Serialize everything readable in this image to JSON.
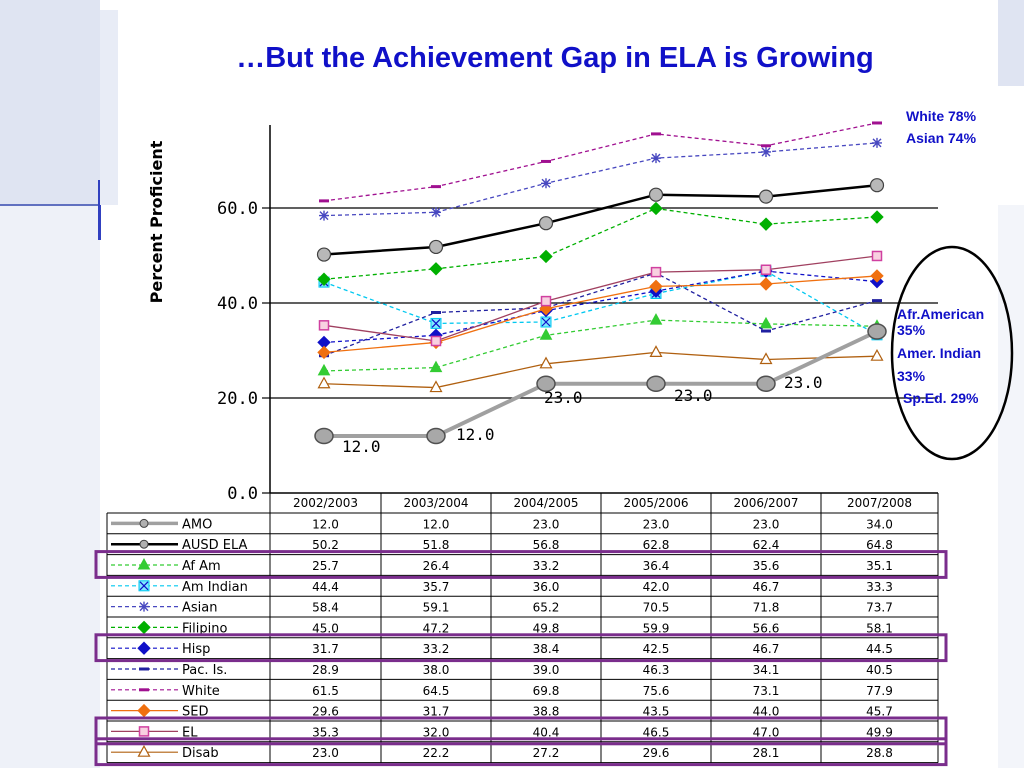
{
  "title": "…But the Achievement Gap in ELA is Growing",
  "callouts": {
    "white": "White 78%",
    "asian": "Asian 74%",
    "afr_american": "Afr.American",
    "afr_american_pct": "35%",
    "amer_indian": "Amer. Indian",
    "amer_indian_pct": "33%",
    "sped": "Sp.Ed. 29%"
  },
  "colors": {
    "title": "#1010c8",
    "highlight_box": "#7a2d8c",
    "oval": "#000000"
  },
  "chart_data": {
    "type": "line",
    "title": "",
    "xlabel": "",
    "ylabel": "Percent Proficient",
    "ylim": [
      0,
      80
    ],
    "yticks": [
      "0.0",
      "20.0",
      "40.0",
      "60.0"
    ],
    "gridlines": [
      20,
      40,
      60
    ],
    "categories": [
      "2002/2003",
      "2003/2004",
      "2004/2005",
      "2005/2006",
      "2006/2007",
      "2007/2008"
    ],
    "legend": "table-below",
    "highlighted_rows": [
      "Af Am",
      "Hisp",
      "EL",
      "Disab"
    ],
    "series": [
      {
        "name": "AMO",
        "color": "#a0a0a0",
        "dash": false,
        "marker": "circle",
        "labels": [
          "12.0",
          "12.0",
          "23.0",
          "23.0",
          "23.0",
          "34.0"
        ],
        "values": [
          12.0,
          12.0,
          23.0,
          23.0,
          23.0,
          34.0
        ]
      },
      {
        "name": "AUSD ELA",
        "color": "#000000",
        "dash": false,
        "marker": "circle",
        "labels": [
          "50.2",
          "51.8",
          "56.8",
          "62.8",
          "62.4",
          "64.8"
        ],
        "values": [
          50.2,
          51.8,
          56.8,
          62.8,
          62.4,
          64.8
        ]
      },
      {
        "name": "Af Am",
        "color": "#33cc33",
        "dash": true,
        "marker": "triangle",
        "labels": [
          "25.7",
          "26.4",
          "33.2",
          "36.4",
          "35.6",
          "35.1"
        ],
        "values": [
          25.7,
          26.4,
          33.2,
          36.4,
          35.6,
          35.1
        ]
      },
      {
        "name": "Am Indian",
        "color": "#00c8f0",
        "dash": true,
        "marker": "xsquare",
        "labels": [
          "44.4",
          "35.7",
          "36.0",
          "42.0",
          "46.7",
          "33.3"
        ],
        "values": [
          44.4,
          35.7,
          36.0,
          42.0,
          46.7,
          33.3
        ]
      },
      {
        "name": "Asian",
        "color": "#4848c0",
        "dash": true,
        "marker": "star",
        "labels": [
          "58.4",
          "59.1",
          "65.2",
          "70.5",
          "71.8",
          "73.7"
        ],
        "values": [
          58.4,
          59.1,
          65.2,
          70.5,
          71.8,
          73.7
        ]
      },
      {
        "name": "Filipino",
        "color": "#00b000",
        "dash": true,
        "marker": "diamond",
        "labels": [
          "45.0",
          "47.2",
          "49.8",
          "59.9",
          "56.6",
          "58.1"
        ],
        "values": [
          45.0,
          47.2,
          49.8,
          59.9,
          56.6,
          58.1
        ]
      },
      {
        "name": "Hisp",
        "color": "#1010c8",
        "dash": true,
        "marker": "diamond",
        "labels": [
          "31.7",
          "33.2",
          "38.4",
          "42.5",
          "46.7",
          "44.5"
        ],
        "values": [
          31.7,
          33.2,
          38.4,
          42.5,
          46.7,
          44.5
        ]
      },
      {
        "name": "Pac. Is.",
        "color": "#2020a0",
        "dash": true,
        "marker": "dash",
        "labels": [
          "28.9",
          "38.0",
          "39.0",
          "46.3",
          "34.1",
          "40.5"
        ],
        "values": [
          28.9,
          38.0,
          39.0,
          46.3,
          34.1,
          40.5
        ]
      },
      {
        "name": "White",
        "color": "#a01090",
        "dash": true,
        "marker": "dash",
        "labels": [
          "61.5",
          "64.5",
          "69.8",
          "75.6",
          "73.1",
          "77.9"
        ],
        "values": [
          61.5,
          64.5,
          69.8,
          75.6,
          73.1,
          77.9
        ]
      },
      {
        "name": "SED",
        "color": "#f07010",
        "dash": false,
        "marker": "diamond",
        "labels": [
          "29.6",
          "31.7",
          "38.8",
          "43.5",
          "44.0",
          "45.7"
        ],
        "values": [
          29.6,
          31.7,
          38.8,
          43.5,
          44.0,
          45.7
        ]
      },
      {
        "name": "EL",
        "color": "#a04060",
        "dash": false,
        "marker": "square",
        "labels": [
          "35.3",
          "32.0",
          "40.4",
          "46.5",
          "47.0",
          "49.9"
        ],
        "values": [
          35.3,
          32.0,
          40.4,
          46.5,
          47.0,
          49.9
        ]
      },
      {
        "name": "Disab",
        "color": "#b06010",
        "dash": false,
        "marker": "triangle-open",
        "labels": [
          "23.0",
          "22.2",
          "27.2",
          "29.6",
          "28.1",
          "28.8"
        ],
        "values": [
          23.0,
          22.2,
          27.2,
          29.6,
          28.1,
          28.8
        ]
      }
    ]
  }
}
